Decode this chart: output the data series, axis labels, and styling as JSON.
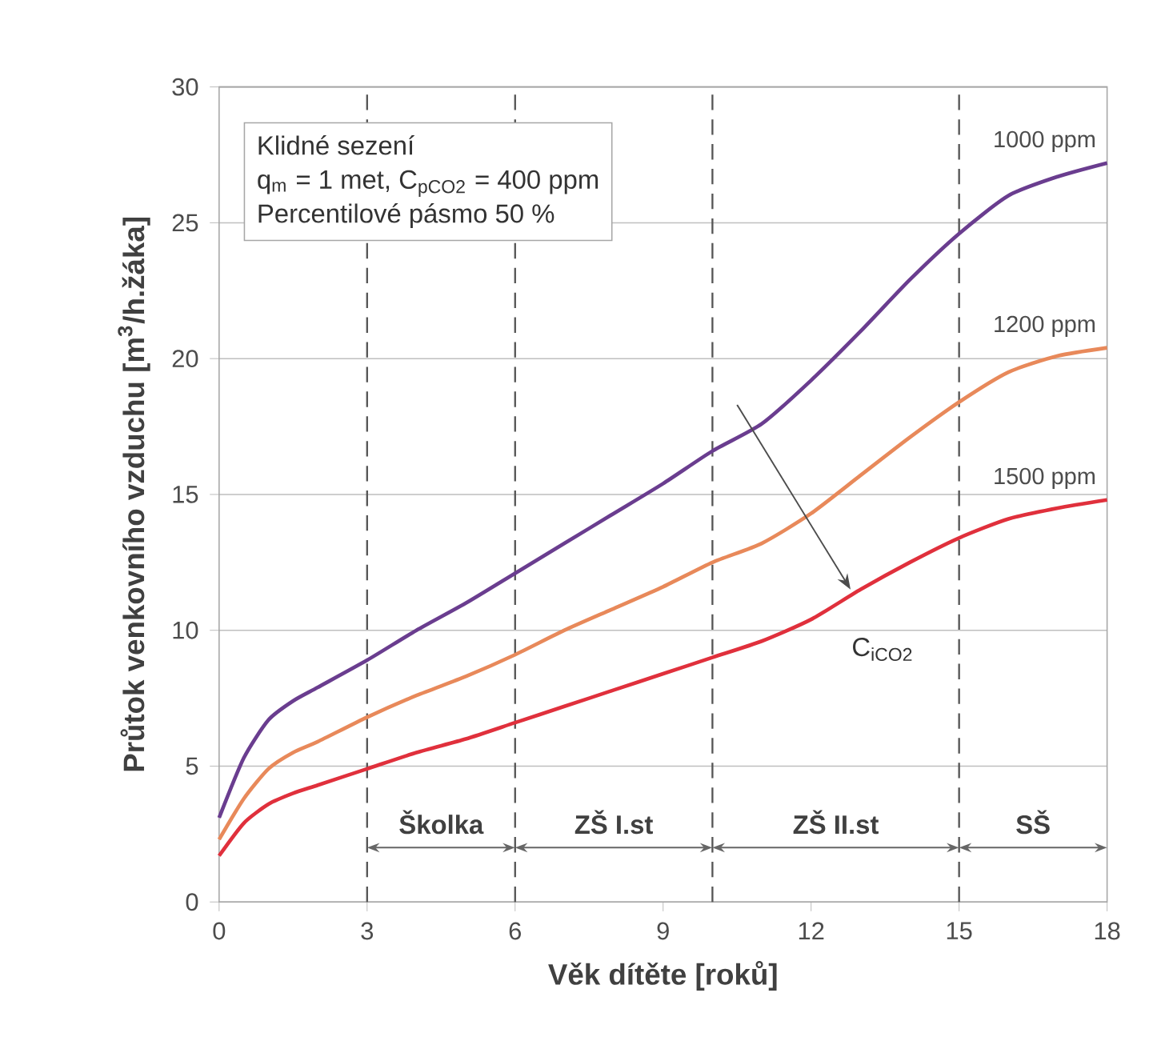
{
  "chart_data": {
    "type": "line",
    "xlabel": "Věk dítěte [roků]",
    "ylabel": "Průtok venkovního vzduchu [m$^{3}$/h.žáka]",
    "x": [
      0,
      0.5,
      1,
      1.5,
      2,
      3,
      4,
      5,
      6,
      7,
      8,
      9,
      10,
      11,
      12,
      13,
      14,
      15,
      16,
      17,
      18
    ],
    "series": [
      {
        "name": "1000 ppm",
        "color": "#6a3d8f",
        "values": [
          3.1,
          5.3,
          6.7,
          7.4,
          7.9,
          8.9,
          10.0,
          11.0,
          12.1,
          13.2,
          14.3,
          15.4,
          16.6,
          17.6,
          19.2,
          21.0,
          22.9,
          24.6,
          26.0,
          26.7,
          27.2
        ]
      },
      {
        "name": "1200 ppm",
        "color": "#e8895a",
        "values": [
          2.3,
          3.8,
          4.9,
          5.5,
          5.9,
          6.8,
          7.6,
          8.3,
          9.1,
          10.0,
          10.8,
          11.6,
          12.5,
          13.2,
          14.3,
          15.7,
          17.1,
          18.4,
          19.5,
          20.1,
          20.4
        ]
      },
      {
        "name": "1500 ppm",
        "color": "#e0303c",
        "values": [
          1.7,
          2.9,
          3.6,
          4.0,
          4.3,
          4.9,
          5.5,
          6.0,
          6.6,
          7.2,
          7.8,
          8.4,
          9.0,
          9.6,
          10.4,
          11.5,
          12.5,
          13.4,
          14.1,
          14.5,
          14.8
        ]
      }
    ],
    "xlim": [
      0,
      18
    ],
    "xticks": [
      0,
      3,
      6,
      9,
      12,
      15,
      18
    ],
    "ylim": [
      0,
      30
    ],
    "yticks": [
      0,
      5,
      10,
      15,
      20,
      25,
      30
    ],
    "grid": "y",
    "legend": false,
    "marker": "none",
    "line_style": "solid",
    "ref_lines": [
      {
        "axis": "x",
        "value": 3,
        "line_style": "dashed",
        "color": "#555555"
      },
      {
        "axis": "x",
        "value": 6,
        "line_style": "dashed",
        "color": "#555555"
      },
      {
        "axis": "x",
        "value": 10,
        "line_style": "dashed",
        "color": "#555555"
      },
      {
        "axis": "x",
        "value": 15,
        "line_style": "dashed",
        "color": "#555555"
      }
    ],
    "annotations": [
      "Klidné sezení",
      "q$_{m}$ = 1 met, C$_{pCO2}$ = 400 ppm",
      "Percentilové pásmo 50 %",
      "C$_{iCO2}$",
      "Školka",
      "ZŠ I.st",
      "ZŠ II.st",
      "SŠ"
    ]
  }
}
